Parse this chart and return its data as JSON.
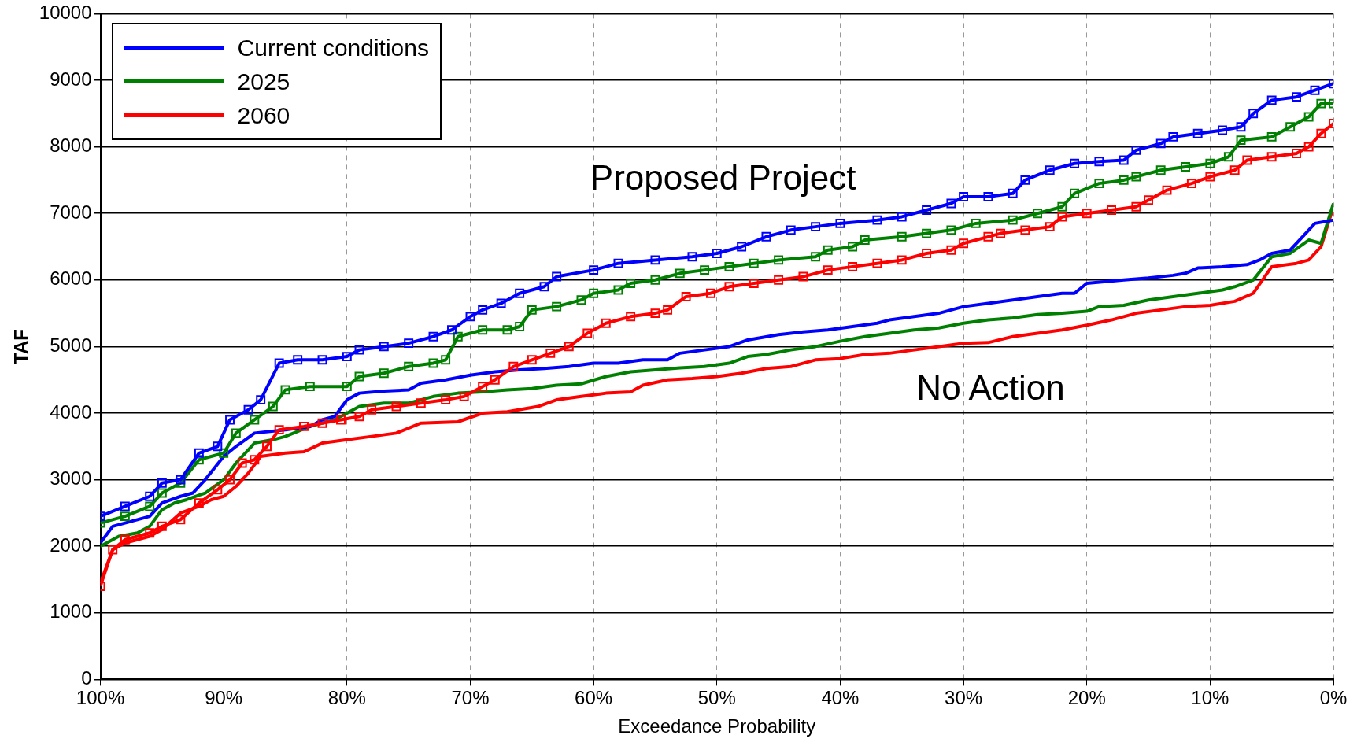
{
  "chart_data": {
    "type": "line",
    "xlabel": "Exceedance Probability",
    "ylabel": "TAF",
    "xlim": [
      100,
      0
    ],
    "xticks": [
      {
        "value": 100,
        "label": "100%"
      },
      {
        "value": 90,
        "label": "90%"
      },
      {
        "value": 80,
        "label": "80%"
      },
      {
        "value": 70,
        "label": "70%"
      },
      {
        "value": 60,
        "label": "60%"
      },
      {
        "value": 50,
        "label": "50%"
      },
      {
        "value": 40,
        "label": "40%"
      },
      {
        "value": 30,
        "label": "30%"
      },
      {
        "value": 20,
        "label": "20%"
      },
      {
        "value": 10,
        "label": "10%"
      },
      {
        "value": 0,
        "label": "0%"
      }
    ],
    "ylim": [
      0,
      10000
    ],
    "yticks": [
      0,
      1000,
      2000,
      3000,
      4000,
      5000,
      6000,
      7000,
      8000,
      9000,
      10000
    ],
    "grid": true,
    "legend": "top left",
    "line_style": "solid",
    "annotations": [
      "Proposed Project",
      "No Action"
    ],
    "series": [
      {
        "name": "Current conditions",
        "color": "#0000ff",
        "marker": "square",
        "x": [
          100,
          98,
          96,
          95,
          93.5,
          92,
          90.5,
          89.5,
          88,
          87,
          85.5,
          84,
          82,
          80,
          79,
          77,
          75,
          73,
          71.5,
          70,
          69,
          67.5,
          66,
          64,
          63,
          60,
          58,
          55,
          52,
          50,
          48,
          46,
          44,
          42,
          40,
          37,
          35,
          33,
          31,
          30,
          28,
          26,
          25,
          23,
          21,
          19,
          17,
          16,
          14,
          13,
          11,
          9,
          7.5,
          6.5,
          5,
          3,
          1.5,
          0
        ],
        "values": [
          2450,
          2600,
          2750,
          2950,
          3000,
          3400,
          3500,
          3900,
          4050,
          4200,
          4750,
          4800,
          4800,
          4850,
          4950,
          5000,
          5050,
          5150,
          5250,
          5450,
          5550,
          5650,
          5800,
          5900,
          6050,
          6150,
          6250,
          6300,
          6350,
          6400,
          6500,
          6650,
          6750,
          6800,
          6850,
          6900,
          6950,
          7050,
          7150,
          7250,
          7250,
          7300,
          7500,
          7650,
          7750,
          7780,
          7800,
          7950,
          8050,
          8150,
          8200,
          8250,
          8300,
          8500,
          8700,
          8750,
          8850,
          8950
        ]
      },
      {
        "name": "2025",
        "color": "#008000",
        "marker": "square",
        "x": [
          100,
          98,
          96,
          95,
          93.5,
          92,
          90,
          89,
          87.5,
          86,
          85,
          83,
          80,
          79,
          77,
          75,
          73,
          72,
          71,
          69,
          67,
          66,
          65,
          63,
          61,
          60,
          58,
          57,
          55,
          53,
          51,
          49,
          47,
          45,
          42,
          41,
          39,
          38,
          35,
          33,
          31,
          29,
          26,
          24,
          22,
          21,
          19,
          17,
          16,
          14,
          12,
          10,
          8.5,
          7.5,
          5,
          3.5,
          2,
          1,
          0
        ],
        "values": [
          2350,
          2450,
          2600,
          2800,
          2950,
          3300,
          3400,
          3700,
          3900,
          4100,
          4350,
          4400,
          4400,
          4550,
          4600,
          4700,
          4750,
          4800,
          5150,
          5250,
          5250,
          5300,
          5550,
          5600,
          5700,
          5800,
          5850,
          5950,
          6000,
          6100,
          6150,
          6200,
          6250,
          6300,
          6350,
          6450,
          6500,
          6600,
          6650,
          6700,
          6750,
          6850,
          6900,
          7000,
          7100,
          7300,
          7450,
          7500,
          7550,
          7650,
          7700,
          7750,
          7850,
          8100,
          8150,
          8300,
          8450,
          8650,
          8650
        ]
      },
      {
        "name": "2060",
        "color": "#ff0000",
        "marker": "square",
        "x": [
          100,
          99,
          98,
          96,
          95,
          93.5,
          92,
          90.5,
          89.5,
          88.5,
          87.5,
          86.5,
          85.5,
          83.5,
          82,
          80.5,
          79,
          78,
          76,
          74,
          72,
          70.5,
          69,
          68,
          66.5,
          65,
          63.5,
          62,
          60.5,
          59,
          57,
          55,
          54,
          52.5,
          50.5,
          49,
          47,
          45,
          43,
          41,
          39,
          37,
          35,
          33,
          31,
          30,
          28,
          27,
          25,
          23,
          22,
          20,
          18,
          16,
          15,
          13.5,
          11.5,
          10,
          8,
          7,
          5,
          3,
          2,
          1,
          0
        ],
        "values": [
          1400,
          1950,
          2100,
          2200,
          2300,
          2400,
          2650,
          2850,
          3000,
          3250,
          3300,
          3500,
          3750,
          3800,
          3850,
          3900,
          3950,
          4050,
          4100,
          4150,
          4200,
          4250,
          4400,
          4500,
          4700,
          4800,
          4900,
          5000,
          5200,
          5350,
          5450,
          5500,
          5550,
          5750,
          5800,
          5900,
          5950,
          6000,
          6050,
          6150,
          6200,
          6250,
          6300,
          6400,
          6450,
          6550,
          6650,
          6700,
          6750,
          6800,
          6950,
          7000,
          7050,
          7100,
          7200,
          7350,
          7450,
          7550,
          7650,
          7800,
          7850,
          7900,
          8000,
          8200,
          8350
        ]
      },
      {
        "color": "#0000ff",
        "marker": "none",
        "x": [
          100,
          99,
          97,
          96,
          95,
          93.5,
          92.5,
          91.5,
          90,
          89,
          87.5,
          85,
          83,
          82,
          81,
          80,
          79,
          77,
          75,
          74,
          72,
          70,
          68,
          66,
          64,
          62,
          60,
          58,
          56,
          54,
          53,
          51,
          49,
          47.5,
          45,
          43,
          41,
          39,
          37,
          36,
          34,
          32,
          31,
          30,
          28,
          26,
          24,
          22,
          21,
          20,
          17,
          15,
          13,
          12,
          11,
          9,
          7,
          6,
          5,
          3.5,
          2.5,
          1.5,
          0
        ],
        "values": [
          2050,
          2300,
          2400,
          2450,
          2650,
          2750,
          2800,
          3000,
          3350,
          3500,
          3700,
          3750,
          3800,
          3900,
          3950,
          4200,
          4300,
          4330,
          4350,
          4450,
          4500,
          4570,
          4620,
          4650,
          4670,
          4700,
          4750,
          4750,
          4800,
          4800,
          4900,
          4950,
          5000,
          5100,
          5180,
          5220,
          5250,
          5300,
          5350,
          5400,
          5450,
          5500,
          5550,
          5600,
          5650,
          5700,
          5750,
          5800,
          5800,
          5950,
          6000,
          6030,
          6070,
          6100,
          6180,
          6200,
          6230,
          6300,
          6400,
          6450,
          6650,
          6850,
          6900
        ]
      },
      {
        "color": "#008000",
        "marker": "none",
        "x": [
          100,
          98.5,
          97,
          96,
          95,
          94,
          93,
          91.5,
          90,
          89,
          88,
          87.5,
          86,
          85,
          83,
          81,
          79,
          77,
          75,
          73,
          71,
          69,
          67,
          65,
          63,
          61,
          59,
          57,
          55,
          53,
          51,
          49,
          47.5,
          46,
          44,
          42,
          40,
          38,
          36,
          34,
          32,
          30,
          28,
          26,
          24,
          22,
          20,
          19,
          17,
          15,
          13,
          11,
          9,
          8,
          6.5,
          5,
          3.5,
          2,
          1,
          0
        ],
        "values": [
          2000,
          2150,
          2200,
          2300,
          2550,
          2650,
          2700,
          2800,
          3000,
          3250,
          3450,
          3550,
          3600,
          3650,
          3800,
          3900,
          4100,
          4150,
          4150,
          4250,
          4300,
          4320,
          4350,
          4370,
          4420,
          4440,
          4550,
          4620,
          4650,
          4680,
          4700,
          4750,
          4850,
          4880,
          4950,
          5000,
          5080,
          5150,
          5200,
          5250,
          5280,
          5350,
          5400,
          5430,
          5480,
          5500,
          5530,
          5600,
          5620,
          5700,
          5750,
          5800,
          5850,
          5900,
          6000,
          6350,
          6400,
          6600,
          6550,
          7150
        ]
      },
      {
        "color": "#ff0000",
        "marker": "none",
        "x": [
          100,
          99,
          98,
          96,
          95,
          93.5,
          92,
          91,
          90,
          89,
          88,
          87,
          85,
          83.5,
          82,
          80,
          78,
          76,
          74,
          71,
          69,
          67,
          64.5,
          63,
          61,
          59,
          57,
          56,
          54,
          52,
          50,
          48,
          46,
          44,
          42,
          40,
          38,
          36,
          34,
          32,
          30,
          28,
          26,
          24,
          22,
          20,
          18,
          16,
          14,
          12,
          10,
          8,
          6.5,
          5,
          3,
          2,
          1,
          0
        ],
        "values": [
          1450,
          1950,
          2050,
          2150,
          2250,
          2500,
          2600,
          2700,
          2750,
          2900,
          3100,
          3350,
          3400,
          3420,
          3550,
          3600,
          3650,
          3700,
          3850,
          3870,
          4000,
          4020,
          4100,
          4200,
          4250,
          4300,
          4320,
          4420,
          4500,
          4520,
          4550,
          4600,
          4670,
          4700,
          4800,
          4820,
          4880,
          4900,
          4950,
          5000,
          5050,
          5060,
          5150,
          5200,
          5250,
          5320,
          5400,
          5500,
          5550,
          5600,
          5620,
          5680,
          5800,
          6200,
          6250,
          6300,
          6500,
          7100
        ]
      }
    ]
  }
}
